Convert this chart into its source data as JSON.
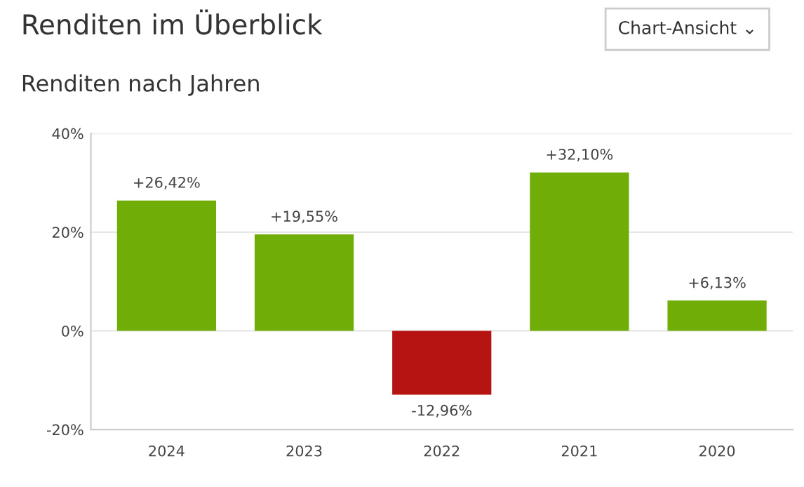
{
  "chart_data": {
    "type": "bar",
    "title": "Renditen im Überblick",
    "subtitle": "Renditen nach Jahren",
    "annotations": [
      "Chart-Ansicht ⌄"
    ],
    "categories": [
      "2024",
      "2023",
      "2022",
      "2021",
      "2020"
    ],
    "values": [
      26.42,
      19.55,
      -12.96,
      32.1,
      6.13
    ],
    "colors": [
      "#70ad07",
      "#70ad07",
      "#b51412",
      "#70ad07",
      "#70ad07"
    ],
    "value_labels": [
      "+26,42%",
      "+19,55%",
      "-12,96%",
      "+32,10%",
      "+6,13%"
    ],
    "ylim": [
      -20,
      40
    ],
    "yticks": [
      {
        "value": -20,
        "label": "-20%"
      },
      {
        "value": 0,
        "label": "0%"
      },
      {
        "value": 20,
        "label": "20%"
      },
      {
        "value": 40,
        "label": "40%"
      }
    ],
    "grid": "y",
    "legend": false
  }
}
